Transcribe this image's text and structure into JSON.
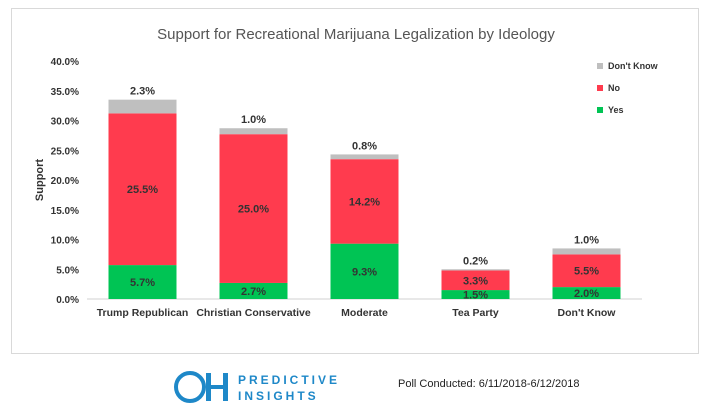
{
  "chart_data": {
    "type": "bar",
    "stacked": true,
    "title": "Support for Recreational Marijuana Legalization by Ideology",
    "ylabel": "Support",
    "xlabel": "",
    "ylim": [
      0,
      40
    ],
    "y_ticks": [
      "0.0%",
      "5.0%",
      "10.0%",
      "15.0%",
      "20.0%",
      "25.0%",
      "30.0%",
      "35.0%",
      "40.0%"
    ],
    "categories": [
      "Trump Republican",
      "Christian Conservative",
      "Moderate",
      "Tea Party",
      "Don't Know"
    ],
    "series": [
      {
        "name": "Yes",
        "color": "#00c454",
        "values": [
          5.7,
          2.7,
          9.3,
          1.5,
          2.0
        ],
        "labels": [
          "5.7%",
          "2.7%",
          "9.3%",
          "1.5%",
          "2.0%"
        ]
      },
      {
        "name": "No",
        "color": "#ff3b4e",
        "values": [
          25.5,
          25.0,
          14.2,
          3.3,
          5.5
        ],
        "labels": [
          "25.5%",
          "25.0%",
          "14.2%",
          "3.3%",
          "5.5%"
        ]
      },
      {
        "name": "Don't Know",
        "color": "#bfbfbf",
        "values": [
          2.3,
          1.0,
          0.8,
          0.2,
          1.0
        ],
        "labels": [
          "2.3%",
          "1.0%",
          "0.8%",
          "0.2%",
          "1.0%"
        ]
      }
    ],
    "legend_order": [
      "Don't Know",
      "No",
      "Yes"
    ],
    "legend_position": "top-right",
    "grid": false
  },
  "footer": {
    "logo_mark": "OH",
    "logo_line1": "PREDICTIVE",
    "logo_line2": "INSIGHTS",
    "logo_color": "#1e88c8",
    "poll_text": "Poll Conducted: 6/11/2018-6/12/2018"
  }
}
